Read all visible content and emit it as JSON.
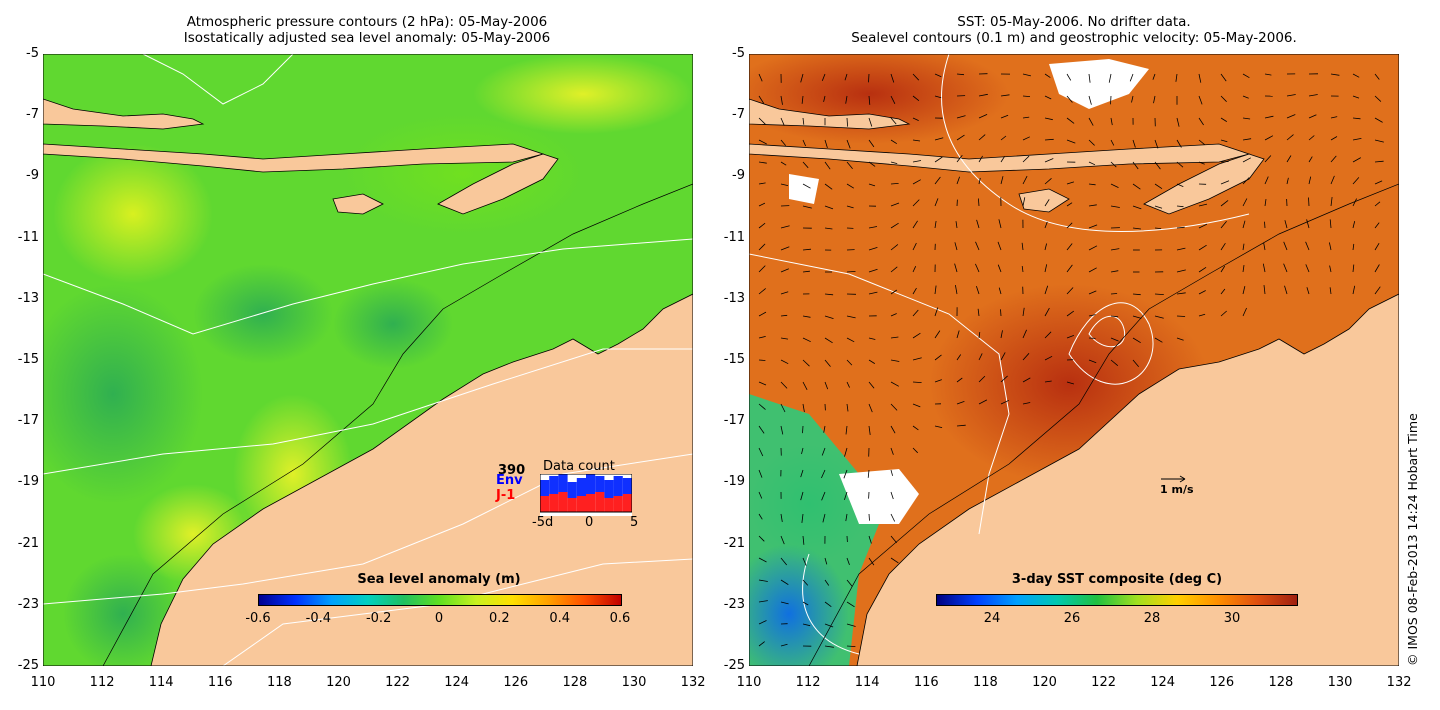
{
  "left_panel": {
    "title_line1": "Atmospheric pressure contours (2 hPa): 05-May-2006",
    "title_line2": "Isostatically adjusted sea level anomaly: 05-May-2006",
    "colorbar_title": "Sea level anomaly (m)",
    "colorbar_ticks": [
      "-0.6",
      "-0.4",
      "-0.2",
      "0",
      "0.2",
      "0.4",
      "0.6"
    ],
    "data_count": {
      "title": "Data count",
      "count": "390",
      "env_label": "Env",
      "j1_label": "J-1",
      "x_ticks": [
        "-5d",
        "0",
        "5"
      ]
    }
  },
  "right_panel": {
    "title_line1": "SST: 05-May-2006. No drifter data.",
    "title_line2": "Sealevel contours (0.1 m) and geostrophic velocity: 05-May-2006.",
    "colorbar_title": "3-day SST composite (deg C)",
    "colorbar_ticks": [
      "24",
      "26",
      "28",
      "30"
    ],
    "velocity_scale": "1 m/s"
  },
  "axes": {
    "lat_ticks": [
      "-5",
      "-7",
      "-9",
      "-11",
      "-13",
      "-15",
      "-17",
      "-19",
      "-21",
      "-23",
      "-25"
    ],
    "lon_ticks": [
      "110",
      "112",
      "114",
      "116",
      "118",
      "120",
      "122",
      "124",
      "126",
      "128",
      "130",
      "132"
    ]
  },
  "copyright": "© IMOS 08-Feb-2013 14:24 Hobart Time",
  "colors": {
    "land": "#f9c89b",
    "sla_colormap": [
      "#00008f",
      "#0050ff",
      "#00c8ff",
      "#20c060",
      "#60e020",
      "#c8f020",
      "#ffd000",
      "#ff8000",
      "#c00000"
    ],
    "sst_colormap": [
      "#000080",
      "#0060ff",
      "#00c0c0",
      "#20c040",
      "#c8e020",
      "#ffb000",
      "#e06010",
      "#b02010"
    ]
  }
}
